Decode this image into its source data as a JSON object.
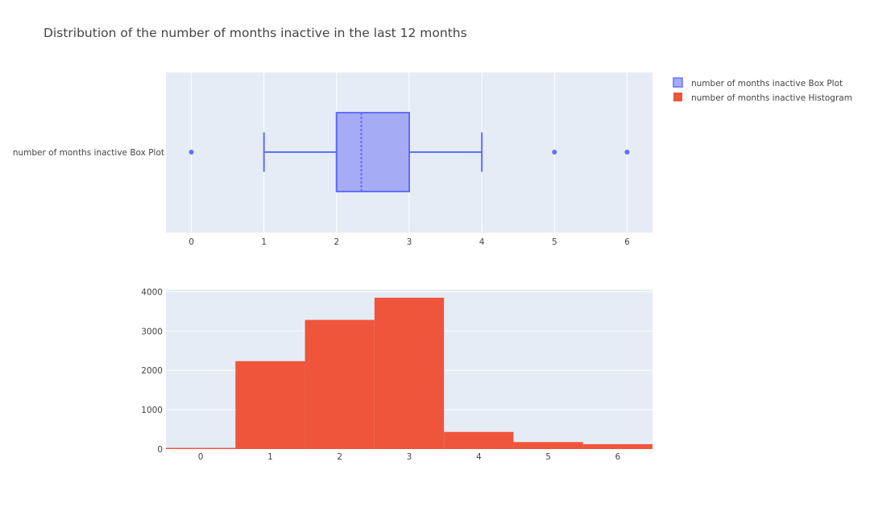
{
  "title": "Distribution of the number of months inactive in the last 12 months",
  "colors": {
    "plot_bg": "#e5ecf6",
    "grid": "#ffffff",
    "box_line": "#636efa",
    "box_fill": "#a5abf5",
    "hist_fill": "#ef553b",
    "text": "#444444"
  },
  "chart_data": [
    {
      "type": "box",
      "orientation": "horizontal",
      "category_label": "number of months inactive Box Plot",
      "stats": {
        "min_whisker": 1,
        "q1": 2,
        "median": 2,
        "mean": 2.34,
        "q3": 3,
        "max_whisker": 4,
        "outliers": [
          0,
          5,
          6
        ]
      },
      "xlim": [
        -0.35,
        6.35
      ],
      "xticks": [
        0,
        1,
        2,
        3,
        4,
        5,
        6
      ],
      "xtick_labels": [
        "0",
        "1",
        "2",
        "3",
        "4",
        "5",
        "6"
      ]
    },
    {
      "type": "bar",
      "subtype": "histogram",
      "categories": [
        "0",
        "1",
        "2",
        "3",
        "4",
        "5",
        "6"
      ],
      "x": [
        0,
        1,
        2,
        3,
        4,
        5,
        6
      ],
      "values": [
        29,
        2233,
        3282,
        3846,
        435,
        178,
        124
      ],
      "xlim": [
        -0.5,
        6.5
      ],
      "ylim": [
        0,
        4049
      ],
      "yticks": [
        0,
        1000,
        2000,
        3000,
        4000
      ],
      "ytick_labels": [
        "0",
        "1000",
        "2000",
        "3000",
        "4000"
      ],
      "xtick_labels": [
        "0",
        "1",
        "2",
        "3",
        "4",
        "5",
        "6"
      ]
    }
  ],
  "legend": {
    "position": "top-right",
    "items": [
      {
        "label": "number of months inactive Box Plot",
        "color": "#636efa",
        "fill": "#a5abf5"
      },
      {
        "label": "number of months inactive Histogram",
        "color": "#ef553b",
        "fill": "#ef553b"
      }
    ]
  }
}
